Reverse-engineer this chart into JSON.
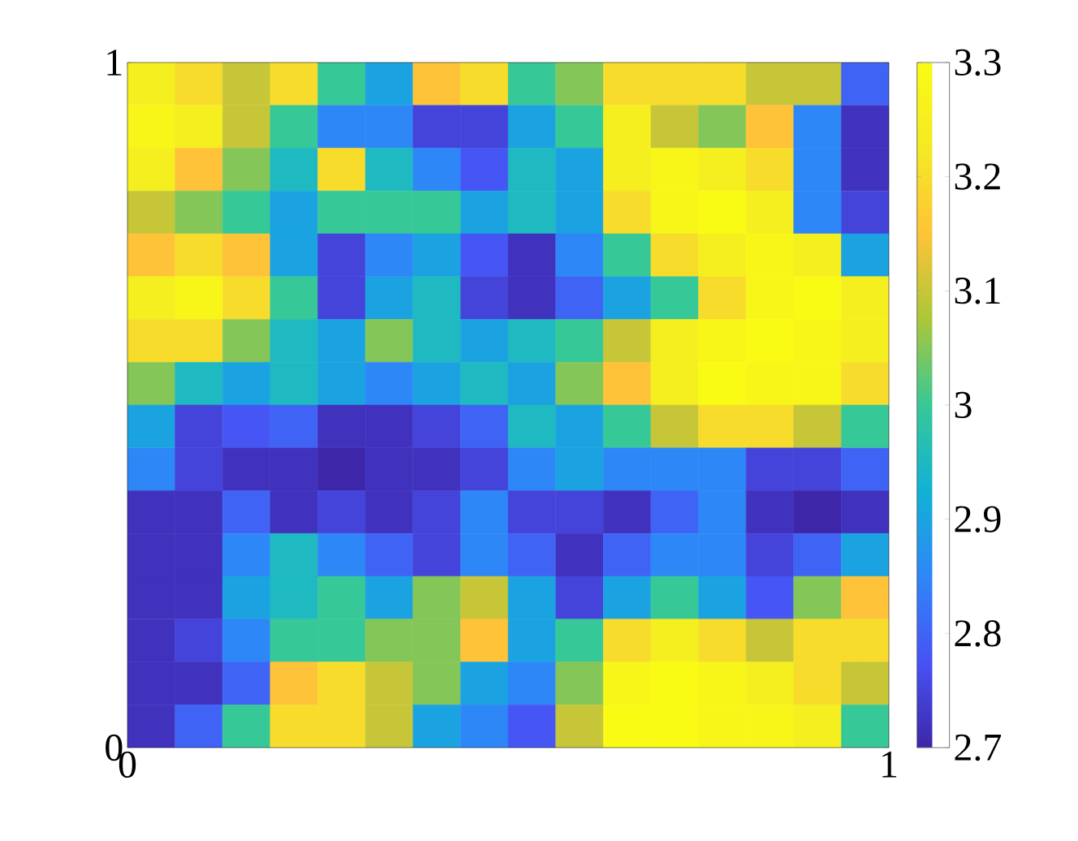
{
  "chart_data": {
    "type": "heatmap",
    "cells": [
      [
        3.25,
        3.2,
        3.1,
        3.2,
        3.0,
        2.9,
        3.15,
        3.2,
        3.0,
        3.05,
        3.2,
        3.2,
        3.2,
        3.1,
        3.1,
        2.8
      ],
      [
        3.28,
        3.25,
        3.1,
        3.0,
        2.85,
        2.85,
        2.75,
        2.75,
        2.9,
        3.0,
        3.25,
        3.1,
        3.05,
        3.15,
        2.85,
        2.72
      ],
      [
        3.25,
        3.15,
        3.05,
        2.95,
        3.2,
        2.95,
        2.85,
        2.78,
        2.95,
        2.9,
        3.25,
        3.28,
        3.25,
        3.2,
        2.85,
        2.72
      ],
      [
        3.1,
        3.05,
        3.0,
        2.9,
        3.0,
        3.0,
        3.0,
        2.9,
        2.95,
        2.9,
        3.2,
        3.28,
        3.3,
        3.25,
        2.85,
        2.75
      ],
      [
        3.15,
        3.2,
        3.15,
        2.9,
        2.75,
        2.85,
        2.9,
        2.78,
        2.72,
        2.85,
        3.0,
        3.2,
        3.25,
        3.28,
        3.25,
        2.9
      ],
      [
        3.25,
        3.28,
        3.2,
        3.0,
        2.75,
        2.9,
        2.95,
        2.75,
        2.72,
        2.8,
        2.9,
        3.0,
        3.2,
        3.28,
        3.3,
        3.25
      ],
      [
        3.2,
        3.2,
        3.05,
        2.95,
        2.9,
        3.05,
        2.95,
        2.9,
        2.95,
        3.0,
        3.1,
        3.25,
        3.28,
        3.3,
        3.28,
        3.25
      ],
      [
        3.05,
        2.95,
        2.9,
        2.95,
        2.9,
        2.85,
        2.9,
        2.95,
        2.9,
        3.05,
        3.15,
        3.25,
        3.3,
        3.28,
        3.28,
        3.2
      ],
      [
        2.9,
        2.75,
        2.78,
        2.8,
        2.72,
        2.72,
        2.75,
        2.8,
        2.95,
        2.9,
        3.0,
        3.1,
        3.2,
        3.2,
        3.1,
        3.0
      ],
      [
        2.85,
        2.75,
        2.72,
        2.72,
        2.7,
        2.72,
        2.72,
        2.75,
        2.85,
        2.9,
        2.85,
        2.85,
        2.85,
        2.75,
        2.75,
        2.8
      ],
      [
        2.72,
        2.72,
        2.8,
        2.72,
        2.75,
        2.72,
        2.75,
        2.85,
        2.75,
        2.75,
        2.72,
        2.8,
        2.85,
        2.72,
        2.7,
        2.72
      ],
      [
        2.72,
        2.72,
        2.85,
        2.95,
        2.85,
        2.8,
        2.75,
        2.85,
        2.8,
        2.72,
        2.8,
        2.85,
        2.85,
        2.75,
        2.8,
        2.9
      ],
      [
        2.72,
        2.72,
        2.9,
        2.95,
        3.0,
        2.9,
        3.05,
        3.1,
        2.9,
        2.75,
        2.9,
        3.0,
        2.9,
        2.78,
        3.05,
        3.15
      ],
      [
        2.72,
        2.75,
        2.85,
        3.0,
        3.0,
        3.05,
        3.05,
        3.15,
        2.9,
        3.0,
        3.2,
        3.25,
        3.2,
        3.1,
        3.2,
        3.2
      ],
      [
        2.72,
        2.72,
        2.8,
        3.15,
        3.2,
        3.1,
        3.05,
        2.9,
        2.85,
        3.05,
        3.28,
        3.3,
        3.28,
        3.25,
        3.2,
        3.1
      ],
      [
        2.72,
        2.8,
        3.0,
        3.2,
        3.2,
        3.1,
        2.9,
        2.85,
        2.78,
        3.1,
        3.3,
        3.3,
        3.28,
        3.28,
        3.25,
        3.0
      ]
    ],
    "clim": [
      2.7,
      3.3
    ],
    "cticks": [
      2.7,
      2.8,
      2.9,
      3,
      3.1,
      3.2,
      3.3
    ],
    "xlim": [
      0,
      1
    ],
    "ylim": [
      0,
      1
    ],
    "xticks": [
      0,
      1
    ],
    "yticks": [
      0,
      1
    ]
  }
}
